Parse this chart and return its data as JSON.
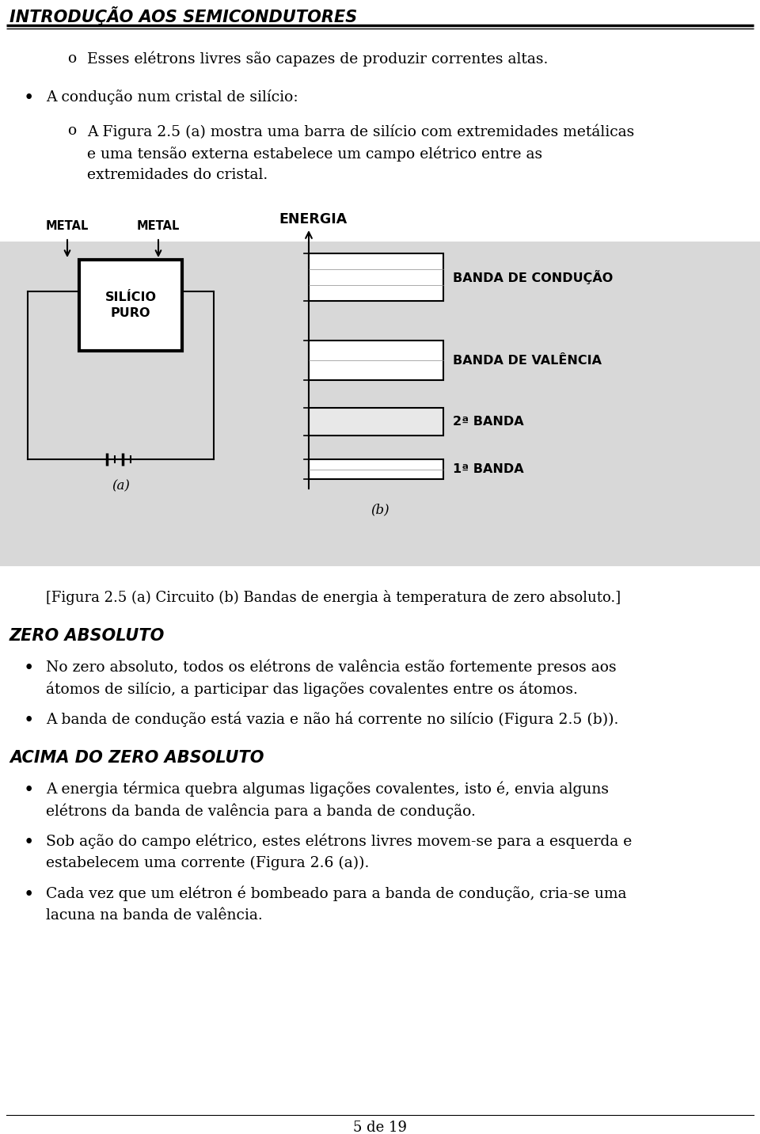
{
  "bg_color": "#c8c8c8",
  "title": "INTRODUÇÃO AOS SEMICONDUTORES",
  "fs_body": 13.5,
  "fs_title": 15,
  "fs_section": 15,
  "caption": "[Figura 2.5 (a) Circuito (b) Bandas de energia à temperatura de zero absoluto.]",
  "section_zero": "ZERO ABSOLUTO",
  "section_acima": "ACIMA DO ZERO ABSOLUTO",
  "page_num": "5 de 19",
  "bands": [
    {
      "name": "BANDA DE CONDUÇÃO",
      "hatch": ""
    },
    {
      "name": "BANDA DE VALÊNCIA",
      "hatch": ""
    },
    {
      "name": "2ª BANDA",
      "hatch": ".."
    },
    {
      "name": "1ª BANDA",
      "hatch": ""
    }
  ]
}
